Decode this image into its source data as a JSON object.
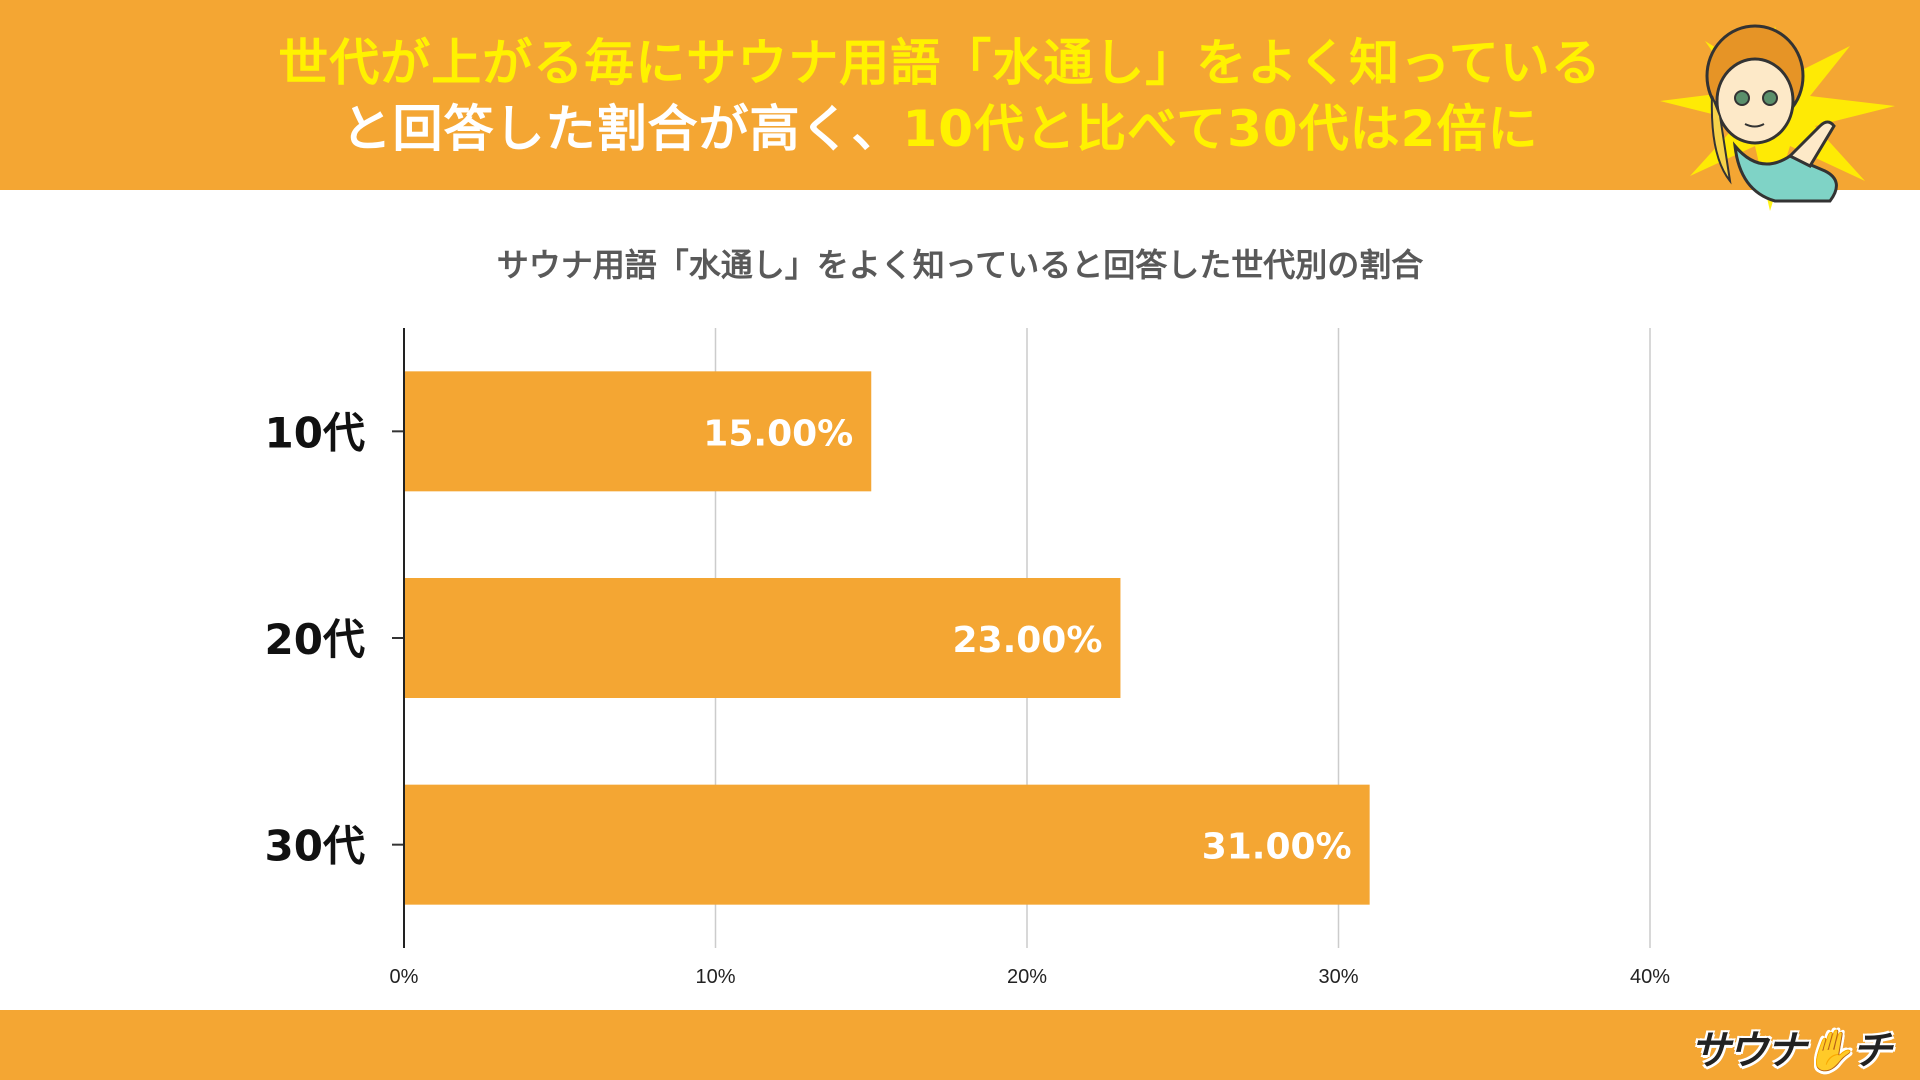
{
  "header": {
    "line1": "世代が上がる毎にサウナ用語「水通し」をよく知っている",
    "line2_prefix": "と回答した割合が高く、",
    "line2_highlight": "10代と比べて30代は2倍に"
  },
  "brand": {
    "logo_text": "サウナ✋チ",
    "mascot_icon": "mascot-girl-pointing-icon"
  },
  "colors": {
    "accent": "#f4a633",
    "highlight": "#fff200",
    "bar": "#f4a633",
    "bar_label": "#ffffff"
  },
  "chart_data": {
    "type": "bar",
    "orientation": "horizontal",
    "title": "サウナ用語「水通し」をよく知っていると回答した世代別の割合",
    "categories": [
      "10代",
      "20代",
      "30代"
    ],
    "values": [
      15.0,
      23.0,
      31.0
    ],
    "value_labels": [
      "15.00%",
      "23.00%",
      "31.00%"
    ],
    "xlim": [
      0,
      40
    ],
    "x_ticks": [
      "0%",
      "10%",
      "20%",
      "30%",
      "40%"
    ],
    "xlabel": "",
    "ylabel": "",
    "grid": true,
    "legend": "none"
  }
}
